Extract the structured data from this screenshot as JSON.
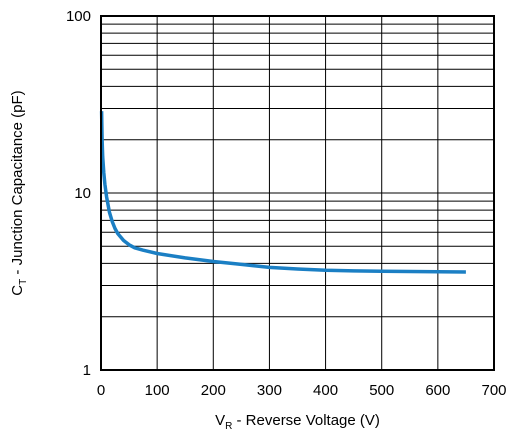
{
  "chart_data": {
    "type": "line",
    "xlabel": {
      "main": "V",
      "sub": "R",
      "rest": " - Reverse Voltage (V)"
    },
    "ylabel": {
      "main": "C",
      "sub": "T",
      "rest": " - Junction Capacitance (pF)"
    },
    "xlim": [
      0,
      700
    ],
    "ylim": [
      1,
      100
    ],
    "yscale": "log",
    "x_ticks": [
      0,
      100,
      200,
      300,
      400,
      500,
      600,
      700
    ],
    "y_ticks": [
      1,
      10,
      100
    ],
    "x_tick_labels": [
      "0",
      "100",
      "200",
      "300",
      "400",
      "500",
      "600",
      "700"
    ],
    "y_tick_labels": [
      "1",
      "10",
      "100"
    ],
    "grid": true,
    "legend": "none",
    "series": [
      {
        "color": "#1b7fc4",
        "x": [
          1,
          2,
          3,
          5,
          7,
          10,
          15,
          20,
          25,
          30,
          40,
          50,
          60,
          75,
          100,
          150,
          200,
          250,
          300,
          350,
          400,
          450,
          500,
          550,
          600,
          650
        ],
        "y": [
          29,
          20,
          16,
          13,
          11.2,
          9.5,
          7.8,
          6.9,
          6.3,
          5.9,
          5.4,
          5.1,
          4.9,
          4.75,
          4.55,
          4.3,
          4.1,
          3.95,
          3.8,
          3.72,
          3.66,
          3.63,
          3.61,
          3.6,
          3.59,
          3.58
        ]
      }
    ]
  }
}
